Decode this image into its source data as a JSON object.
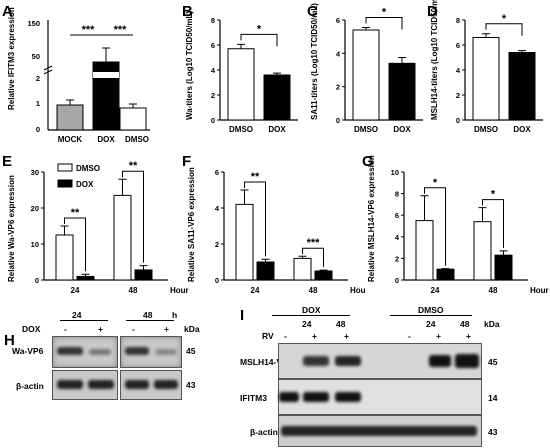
{
  "chart_data": [
    {
      "panel": "A",
      "type": "bar",
      "categories": [
        "MOCK",
        "DOX",
        "DMSO"
      ],
      "values": [
        1.0,
        88,
        0.9
      ],
      "errors": [
        0.2,
        22,
        0.15
      ],
      "ylabel": "Relative IFITM3 expression",
      "yticks": [
        "0",
        "1",
        "2",
        "50",
        "100",
        "150"
      ],
      "sig": [
        {
          "pair": [
            "MOCK",
            "DOX"
          ],
          "label": "***"
        },
        {
          "pair": [
            "DOX",
            "DMSO"
          ],
          "label": "***"
        }
      ]
    },
    {
      "panel": "B",
      "type": "bar",
      "categories": [
        "DMSO",
        "DOX"
      ],
      "values": [
        5.7,
        3.6
      ],
      "errors": [
        0.35,
        0.15
      ],
      "ylabel": "Wa-titers (Log10 TCID50/mL)",
      "yticks": [
        "0",
        "2",
        "4",
        "6",
        "8"
      ],
      "ylim": [
        0,
        8
      ],
      "sig": [
        {
          "label": "*"
        }
      ]
    },
    {
      "panel": "C",
      "type": "bar",
      "categories": [
        "DMSO",
        "DOX"
      ],
      "values": [
        5.4,
        3.4
      ],
      "errors": [
        0.15,
        0.35
      ],
      "ylabel": "SA11-titers (Log10 TCID50/mL)",
      "yticks": [
        "0",
        "2",
        "4",
        "6"
      ],
      "ylim": [
        0,
        6
      ],
      "sig": [
        {
          "label": "*"
        }
      ]
    },
    {
      "panel": "D",
      "type": "bar",
      "categories": [
        "DMSO",
        "DOX"
      ],
      "values": [
        6.6,
        5.4
      ],
      "errors": [
        0.3,
        0.15
      ],
      "ylabel": "MSLH14-titers (Log10 TCID50/mL)",
      "yticks": [
        "0",
        "2",
        "4",
        "6",
        "8"
      ],
      "ylim": [
        0,
        8
      ],
      "sig": [
        {
          "label": "*"
        }
      ]
    },
    {
      "panel": "E",
      "type": "bar",
      "categories": [
        "24",
        "48"
      ],
      "xunit": "Hour",
      "series": [
        {
          "name": "DMSO",
          "values": [
            12.5,
            23.5
          ],
          "errors": [
            2.5,
            4.5
          ]
        },
        {
          "name": "DOX",
          "values": [
            1.0,
            2.8
          ],
          "errors": [
            0.6,
            1.2
          ]
        }
      ],
      "ylabel": "Relative Wa-VP6 expression",
      "yticks": [
        "0",
        "10",
        "20",
        "30"
      ],
      "ylim": [
        0,
        30
      ],
      "sig": [
        {
          "label": "**"
        },
        {
          "label": "**"
        }
      ]
    },
    {
      "panel": "F",
      "type": "bar",
      "categories": [
        "24",
        "48"
      ],
      "xunit": "Hour",
      "series": [
        {
          "name": "DMSO",
          "values": [
            4.2,
            1.2
          ],
          "errors": [
            0.8,
            0.12
          ]
        },
        {
          "name": "DOX",
          "values": [
            1.0,
            0.5
          ],
          "errors": [
            0.15,
            0.05
          ]
        }
      ],
      "ylabel": "Relative SA11-VP6 expression",
      "yticks": [
        "0",
        "2",
        "4",
        "6"
      ],
      "ylim": [
        0,
        6
      ],
      "sig": [
        {
          "label": "**"
        },
        {
          "label": "***"
        }
      ]
    },
    {
      "panel": "G",
      "type": "bar",
      "categories": [
        "24",
        "48"
      ],
      "xunit": "Hour",
      "series": [
        {
          "name": "DMSO",
          "values": [
            5.5,
            5.4
          ],
          "errors": [
            2.3,
            1.3
          ]
        },
        {
          "name": "DOX",
          "values": [
            1.0,
            2.3
          ],
          "errors": [
            0.05,
            0.4
          ]
        }
      ],
      "ylabel": "Relative MSLH14-VP6 expression",
      "yticks": [
        "0",
        "2",
        "4",
        "6",
        "8",
        "10"
      ],
      "ylim": [
        0,
        10
      ],
      "sig": [
        {
          "label": "*"
        },
        {
          "label": "*"
        }
      ]
    }
  ],
  "legend": {
    "dmso": "DMSO",
    "dox": "DOX"
  },
  "panelH": {
    "letter": "H",
    "t1": "24",
    "t2": "48",
    "h": "h",
    "dox": "DOX",
    "minus1": "-",
    "plus1": "+",
    "minus2": "-",
    "plus2": "+",
    "kda": "kDa",
    "row1": "Wa-VP6",
    "row2": "β-actin",
    "kd1": "45",
    "kd2": "43"
  },
  "panelI": {
    "letter": "I",
    "g1": "DOX",
    "g2": "DMSO",
    "rv": "RV",
    "kda": "kDa",
    "cols": [
      "-",
      "+",
      "+",
      "-",
      "+",
      "+"
    ],
    "times": [
      "24",
      "48",
      "24",
      "48"
    ],
    "row1": "MSLH14-VP6",
    "row2": "IFITM3",
    "row3": "β-actin",
    "kd1": "45",
    "kd2": "14",
    "kd3": "43"
  },
  "colors": {
    "gray": "#a6a6a6",
    "white": "#ffffff",
    "black": "#000000"
  }
}
